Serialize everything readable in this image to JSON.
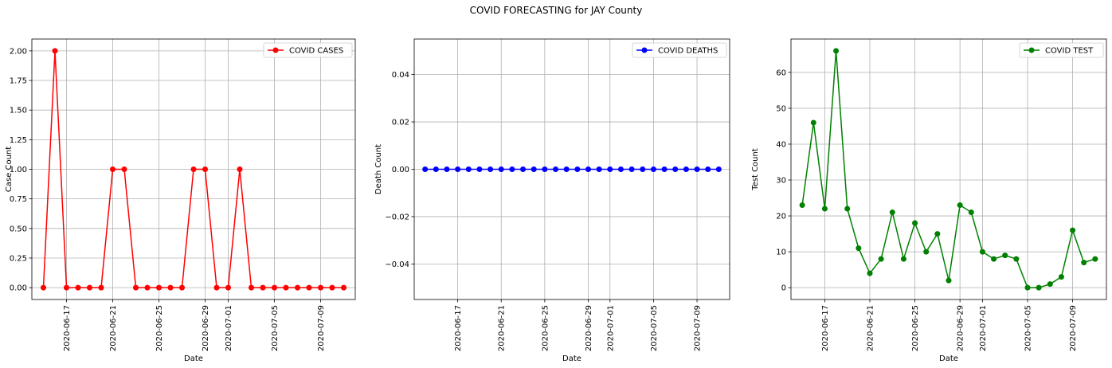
{
  "figure": {
    "title": "COVID FORECASTING for JAY County"
  },
  "chart_data": [
    {
      "type": "line",
      "xlabel": "Date",
      "ylabel": "Case Count",
      "legend": {
        "position": "top-right"
      },
      "grid": true,
      "color": "#ff0000",
      "marker": "circle",
      "x": [
        "2020-06-15",
        "2020-06-16",
        "2020-06-17",
        "2020-06-18",
        "2020-06-19",
        "2020-06-20",
        "2020-06-21",
        "2020-06-22",
        "2020-06-23",
        "2020-06-24",
        "2020-06-25",
        "2020-06-26",
        "2020-06-27",
        "2020-06-28",
        "2020-06-29",
        "2020-06-30",
        "2020-07-01",
        "2020-07-02",
        "2020-07-03",
        "2020-07-04",
        "2020-07-05",
        "2020-07-06",
        "2020-07-07",
        "2020-07-08",
        "2020-07-09",
        "2020-07-10",
        "2020-07-11"
      ],
      "series": [
        {
          "name": "COVID CASES",
          "values": [
            0,
            2,
            0,
            0,
            0,
            0,
            1,
            1,
            0,
            0,
            0,
            0,
            0,
            1,
            1,
            0,
            0,
            1,
            0,
            0,
            0,
            0,
            0,
            0,
            0,
            0,
            0
          ]
        }
      ],
      "xticks": [
        "2020-06-17",
        "2020-06-21",
        "2020-06-25",
        "2020-06-29",
        "2020-07-01",
        "2020-07-05",
        "2020-07-09"
      ],
      "yticks": [
        0.0,
        0.25,
        0.5,
        0.75,
        1.0,
        1.25,
        1.5,
        1.75,
        2.0
      ],
      "ytick_labels": [
        "0.00",
        "0.25",
        "0.50",
        "0.75",
        "1.00",
        "1.25",
        "1.50",
        "1.75",
        "2.00"
      ],
      "xlim": [
        "2020-06-14",
        "2020-07-12"
      ],
      "ylim": [
        -0.1,
        2.1
      ]
    },
    {
      "type": "line",
      "xlabel": "Date",
      "ylabel": "Death Count",
      "legend": {
        "position": "top-right"
      },
      "grid": true,
      "color": "#0000ff",
      "marker": "circle",
      "x": [
        "2020-06-14",
        "2020-06-15",
        "2020-06-16",
        "2020-06-17",
        "2020-06-18",
        "2020-06-19",
        "2020-06-20",
        "2020-06-21",
        "2020-06-22",
        "2020-06-23",
        "2020-06-24",
        "2020-06-25",
        "2020-06-26",
        "2020-06-27",
        "2020-06-28",
        "2020-06-29",
        "2020-06-30",
        "2020-07-01",
        "2020-07-02",
        "2020-07-03",
        "2020-07-04",
        "2020-07-05",
        "2020-07-06",
        "2020-07-07",
        "2020-07-08",
        "2020-07-09",
        "2020-07-10",
        "2020-07-11"
      ],
      "series": [
        {
          "name": "COVID DEATHS",
          "values": [
            0,
            0,
            0,
            0,
            0,
            0,
            0,
            0,
            0,
            0,
            0,
            0,
            0,
            0,
            0,
            0,
            0,
            0,
            0,
            0,
            0,
            0,
            0,
            0,
            0,
            0,
            0,
            0
          ]
        }
      ],
      "xticks": [
        "2020-06-17",
        "2020-06-21",
        "2020-06-25",
        "2020-06-29",
        "2020-07-01",
        "2020-07-05",
        "2020-07-09"
      ],
      "yticks": [
        -0.04,
        -0.02,
        0.0,
        0.02,
        0.04
      ],
      "ytick_labels": [
        "−0.04",
        "−0.02",
        "0.00",
        "0.02",
        "0.04"
      ],
      "xlim": [
        "2020-06-13",
        "2020-07-12"
      ],
      "ylim": [
        -0.055,
        0.055
      ]
    },
    {
      "type": "line",
      "xlabel": "Date",
      "ylabel": "Test Count",
      "legend": {
        "position": "top-right"
      },
      "grid": true,
      "color": "#008000",
      "marker": "circle",
      "x": [
        "2020-06-15",
        "2020-06-16",
        "2020-06-17",
        "2020-06-18",
        "2020-06-19",
        "2020-06-20",
        "2020-06-21",
        "2020-06-22",
        "2020-06-23",
        "2020-06-24",
        "2020-06-25",
        "2020-06-26",
        "2020-06-27",
        "2020-06-28",
        "2020-06-29",
        "2020-06-30",
        "2020-07-01",
        "2020-07-02",
        "2020-07-03",
        "2020-07-04",
        "2020-07-05",
        "2020-07-06",
        "2020-07-07",
        "2020-07-08",
        "2020-07-09",
        "2020-07-10",
        "2020-07-11"
      ],
      "series": [
        {
          "name": "COVID TEST",
          "values": [
            23,
            46,
            22,
            66,
            22,
            11,
            4,
            8,
            21,
            8,
            18,
            10,
            15,
            2,
            23,
            21,
            10,
            8,
            9,
            8,
            0,
            0,
            1,
            3,
            16,
            7,
            8
          ]
        }
      ],
      "xticks": [
        "2020-06-17",
        "2020-06-21",
        "2020-06-25",
        "2020-06-29",
        "2020-07-01",
        "2020-07-05",
        "2020-07-09"
      ],
      "yticks": [
        0,
        10,
        20,
        30,
        40,
        50,
        60
      ],
      "ytick_labels": [
        "0",
        "10",
        "20",
        "30",
        "40",
        "50",
        "60"
      ],
      "xlim": [
        "2020-06-14",
        "2020-07-12"
      ],
      "ylim": [
        -3.3,
        69.3
      ]
    }
  ]
}
